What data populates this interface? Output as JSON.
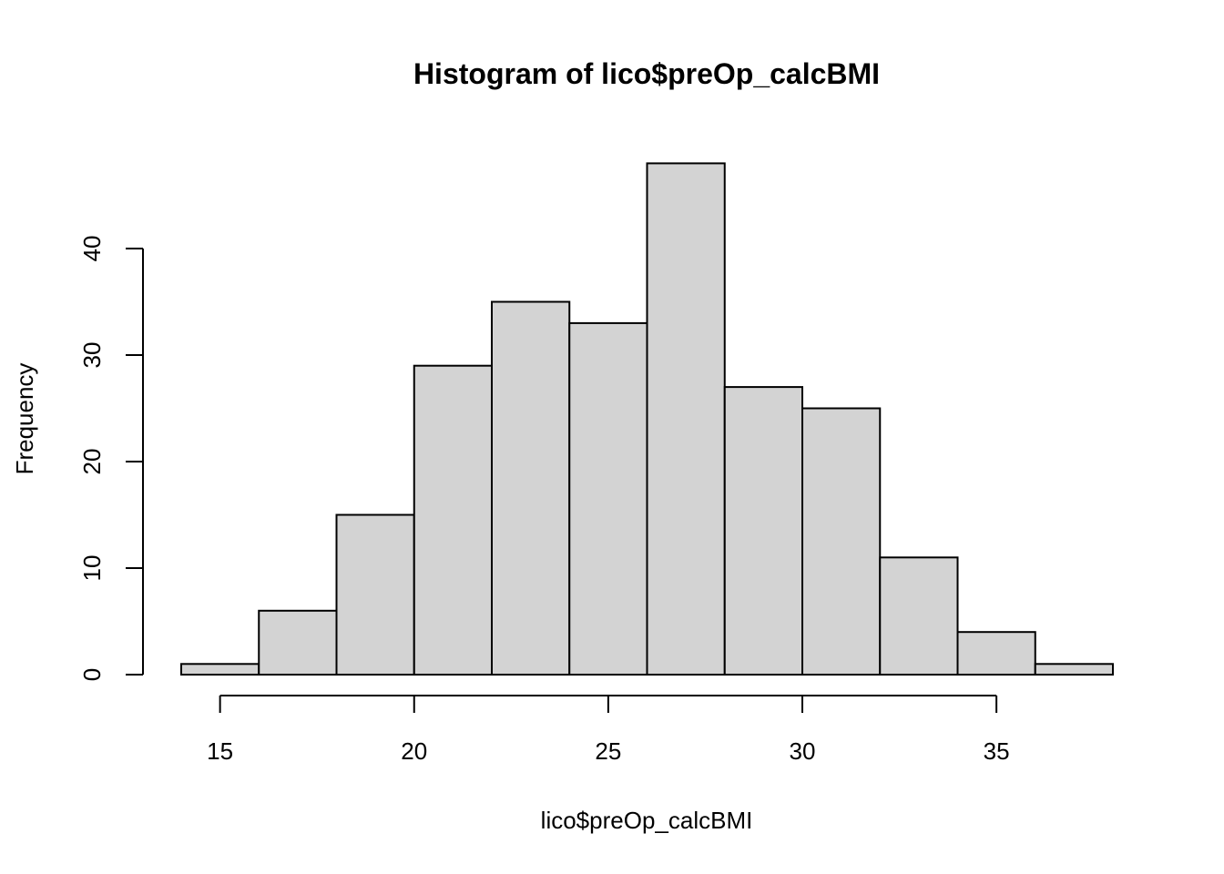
{
  "chart_data": {
    "type": "bar",
    "title": "Histogram of lico$preOp_calcBMI",
    "xlabel": "lico$preOp_calcBMI",
    "ylabel": "Frequency",
    "bins": [
      {
        "start": 14,
        "end": 16,
        "count": 1
      },
      {
        "start": 16,
        "end": 18,
        "count": 6
      },
      {
        "start": 18,
        "end": 20,
        "count": 15
      },
      {
        "start": 20,
        "end": 22,
        "count": 29
      },
      {
        "start": 22,
        "end": 24,
        "count": 35
      },
      {
        "start": 24,
        "end": 26,
        "count": 33
      },
      {
        "start": 26,
        "end": 28,
        "count": 48
      },
      {
        "start": 28,
        "end": 30,
        "count": 27
      },
      {
        "start": 30,
        "end": 32,
        "count": 25
      },
      {
        "start": 32,
        "end": 34,
        "count": 11
      },
      {
        "start": 34,
        "end": 36,
        "count": 4
      },
      {
        "start": 36,
        "end": 38,
        "count": 1
      }
    ],
    "xticks": [
      15,
      20,
      25,
      30,
      35
    ],
    "yticks": [
      0,
      10,
      20,
      30,
      40
    ],
    "xlim": [
      14,
      38
    ],
    "ylim": [
      0,
      48
    ],
    "bar_color": "#d3d3d3",
    "border_color": "#000000",
    "grid": false
  }
}
